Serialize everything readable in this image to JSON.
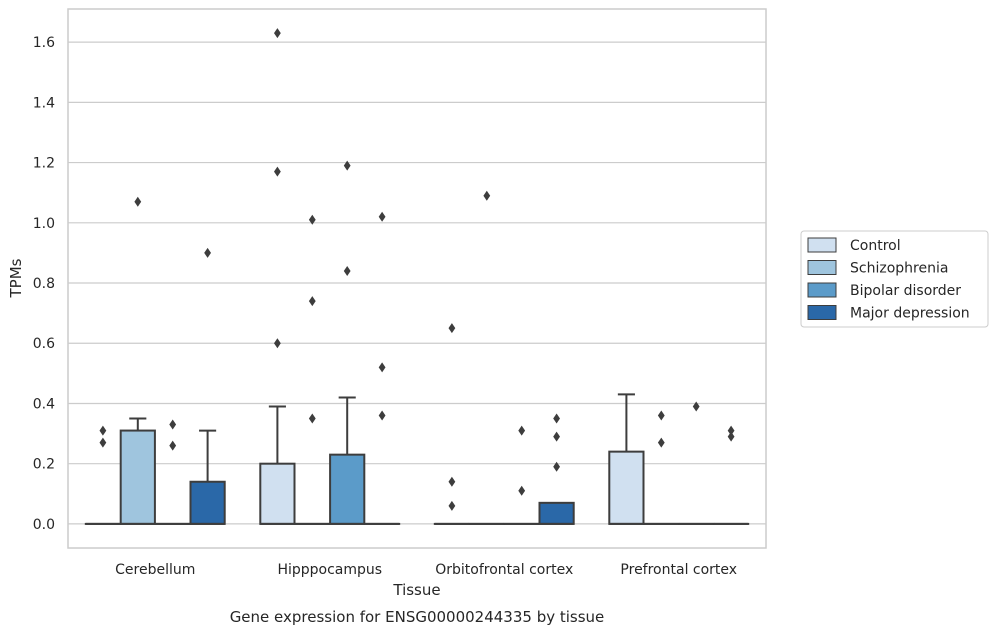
{
  "chart_data": {
    "type": "box",
    "xlabel": "Tissue",
    "ylabel": "TPMs",
    "caption": "Gene expression for ENSG00000244335 by tissue",
    "categories": [
      "Cerebellum",
      "Hipppocampus",
      "Orbitofrontal cortex",
      "Prefrontal cortex"
    ],
    "ylim": [
      -0.08,
      1.71
    ],
    "yticks": [
      0.0,
      0.2,
      0.4,
      0.6,
      0.8,
      1.0,
      1.2,
      1.4,
      1.6
    ],
    "ytick_labels": [
      "0.0",
      "0.2",
      "0.4",
      "0.6",
      "0.8",
      "1.0",
      "1.2",
      "1.4",
      "1.6"
    ],
    "grid": true,
    "legend_position": "right",
    "series": [
      {
        "name": "Control",
        "color": "#d0e0f0",
        "boxes": [
          {
            "q1": 0.0,
            "median": 0.0,
            "q3": 0.0,
            "whislo": 0.0,
            "whishi": 0.0,
            "fliers": [
              0.27,
              0.31
            ]
          },
          {
            "q1": 0.0,
            "median": 0.0,
            "q3": 0.2,
            "whislo": 0.0,
            "whishi": 0.39,
            "fliers": [
              0.6,
              1.17,
              1.63
            ]
          },
          {
            "q1": 0.0,
            "median": 0.0,
            "q3": 0.0,
            "whislo": 0.0,
            "whishi": 0.0,
            "fliers": [
              0.06,
              0.14,
              0.65
            ]
          },
          {
            "q1": 0.0,
            "median": 0.0,
            "q3": 0.24,
            "whislo": 0.0,
            "whishi": 0.43,
            "fliers": []
          }
        ]
      },
      {
        "name": "Schizophrenia",
        "color": "#9fc5de",
        "boxes": [
          {
            "q1": 0.0,
            "median": 0.0,
            "q3": 0.31,
            "whislo": 0.0,
            "whishi": 0.35,
            "fliers": [
              1.07
            ]
          },
          {
            "q1": 0.0,
            "median": 0.0,
            "q3": 0.0,
            "whislo": 0.0,
            "whishi": 0.0,
            "fliers": [
              0.35,
              0.74,
              1.01
            ]
          },
          {
            "q1": 0.0,
            "median": 0.0,
            "q3": 0.0,
            "whislo": 0.0,
            "whishi": 0.0,
            "fliers": [
              1.09
            ]
          },
          {
            "q1": 0.0,
            "median": 0.0,
            "q3": 0.0,
            "whislo": 0.0,
            "whishi": 0.0,
            "fliers": [
              0.27,
              0.36
            ]
          }
        ]
      },
      {
        "name": "Bipolar disorder",
        "color": "#5b9bc9",
        "boxes": [
          {
            "q1": 0.0,
            "median": 0.0,
            "q3": 0.0,
            "whislo": 0.0,
            "whishi": 0.0,
            "fliers": [
              0.26,
              0.33
            ]
          },
          {
            "q1": 0.0,
            "median": 0.0,
            "q3": 0.23,
            "whislo": 0.0,
            "whishi": 0.42,
            "fliers": [
              0.84,
              1.19
            ]
          },
          {
            "q1": 0.0,
            "median": 0.0,
            "q3": 0.0,
            "whislo": 0.0,
            "whishi": 0.0,
            "fliers": [
              0.11,
              0.31
            ]
          },
          {
            "q1": 0.0,
            "median": 0.0,
            "q3": 0.0,
            "whislo": 0.0,
            "whishi": 0.0,
            "fliers": [
              0.39
            ]
          }
        ]
      },
      {
        "name": "Major depression",
        "color": "#2a68a8",
        "boxes": [
          {
            "q1": 0.0,
            "median": 0.0,
            "q3": 0.14,
            "whislo": 0.0,
            "whishi": 0.31,
            "fliers": [
              0.9
            ]
          },
          {
            "q1": 0.0,
            "median": 0.0,
            "q3": 0.0,
            "whislo": 0.0,
            "whishi": 0.0,
            "fliers": [
              0.36,
              0.52,
              1.02
            ]
          },
          {
            "q1": 0.0,
            "median": 0.0,
            "q3": 0.07,
            "whislo": 0.0,
            "whishi": 0.07,
            "fliers": [
              0.19,
              0.29,
              0.35
            ]
          },
          {
            "q1": 0.0,
            "median": 0.0,
            "q3": 0.0,
            "whislo": 0.0,
            "whishi": 0.0,
            "fliers": [
              0.29,
              0.31
            ]
          }
        ]
      }
    ]
  }
}
